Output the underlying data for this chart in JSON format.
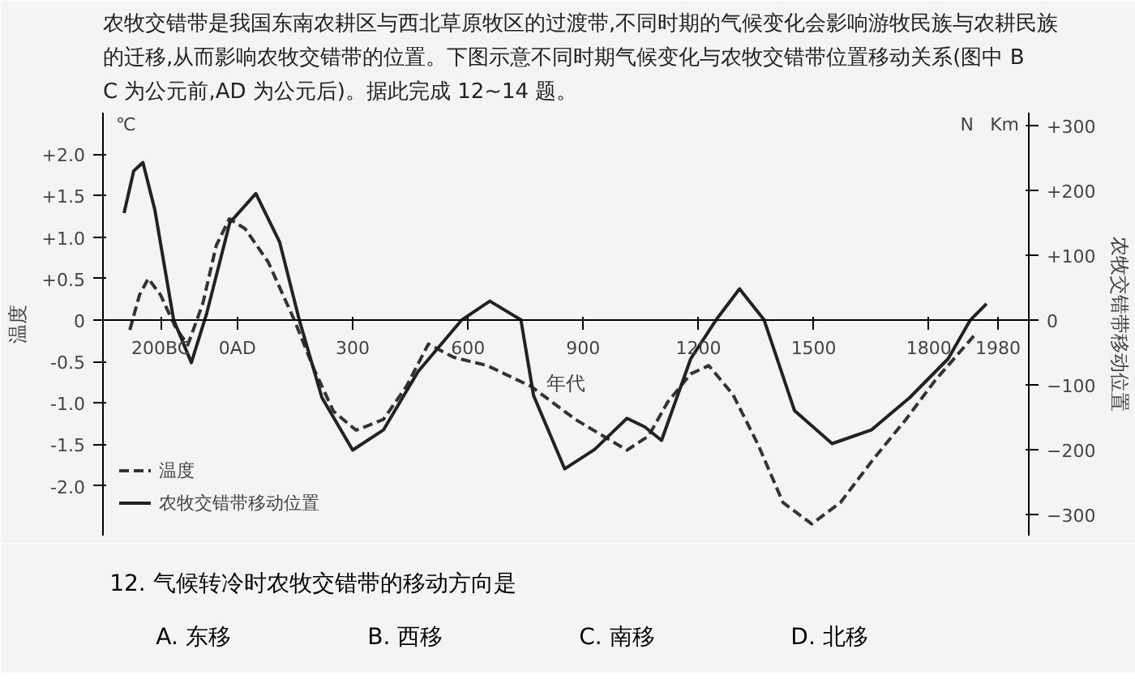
{
  "chart_data": {
    "type": "line",
    "title": "农牧交错带是我国东南农耕区与西北草原牧区的过渡带,不同时期的气候变化会影响游牧民族与农耕民族的迁移,从而影响农牧交错带的位置。下图示意不同时期气候变化与农牧交错带位置移动关系(图中 BC 为公元前,AD 为公元后)。据此完成 12~14 题。",
    "xlabel": "年代",
    "ylabel": "温度",
    "y2label": "农牧交错带移动位置",
    "annotations": [
      "℃",
      "N",
      "Km",
      "12. 气候转冷时农牧交错带的移动方向是",
      "A. 东移",
      "B. 西移",
      "C. 南移",
      "D. 北移"
    ],
    "xlim": [
      -350,
      2060
    ],
    "xticks": [
      {
        "value": -200,
        "label": "200BC"
      },
      {
        "value": 0,
        "label": "0AD"
      },
      300,
      600,
      900,
      1200,
      1500,
      1800,
      1980
    ],
    "ylim": [
      -2.6,
      2.5
    ],
    "yticks": [
      {
        "value": 2.0,
        "label": "+2.0"
      },
      {
        "value": 1.5,
        "label": "+1.5"
      },
      {
        "value": 1.0,
        "label": "+1.0"
      },
      {
        "value": 0.5,
        "label": "+0.5"
      },
      0,
      {
        "value": -0.5,
        "label": "-0.5"
      },
      {
        "value": -1.0,
        "label": "-1.0"
      },
      {
        "value": -1.5,
        "label": "-1.5"
      },
      {
        "value": -2.0,
        "label": "-2.0"
      }
    ],
    "y2lim": [
      -333,
      320
    ],
    "y2ticks": [
      {
        "value": 300,
        "label": "+300"
      },
      {
        "value": 200,
        "label": "+200"
      },
      {
        "value": 100,
        "label": "+100"
      },
      0,
      -100,
      -200,
      -300
    ],
    "grid": false,
    "legend": "bottom left",
    "series": [
      {
        "name": "温度",
        "color": "#333333",
        "line_style": "dashed",
        "x": [
          -280,
          -255,
          -232,
          -200,
          -160,
          -129,
          -90,
          -55,
          -21,
          20,
          80,
          148,
          200,
          250,
          309,
          380,
          440,
          497,
          563,
          650,
          764,
          880,
          1014,
          1070,
          1120,
          1180,
          1227,
          1290,
          1355,
          1420,
          1495,
          1570,
          1655,
          1740,
          1816,
          1923
        ],
        "values": [
          -0.12,
          0.3,
          0.5,
          0.3,
          -0.1,
          -0.3,
          0.2,
          0.9,
          1.22,
          1.1,
          0.7,
          0,
          -0.6,
          -1.1,
          -1.33,
          -1.2,
          -0.8,
          -0.29,
          -0.45,
          -0.55,
          -0.8,
          -1.2,
          -1.57,
          -1.4,
          -0.99,
          -0.65,
          -0.55,
          -0.9,
          -1.5,
          -2.2,
          -2.46,
          -2.2,
          -1.68,
          -1.2,
          -0.73,
          -0.16
        ]
      },
      {
        "name": "农牧交错带移动位置",
        "color": "#222222",
        "line_style": "solid",
        "axis": "y2",
        "x": [
          -295,
          -270,
          -246,
          -215,
          -166,
          -120,
          -80,
          -20,
          48,
          110,
          161,
          220,
          300,
          380,
          470,
          584,
          657,
          738,
          771,
          852,
          930,
          1014,
          1060,
          1104,
          1180,
          1246,
          1307,
          1371,
          1450,
          1548,
          1650,
          1750,
          1850,
          1908,
          1950
        ],
        "values": [
          165,
          230,
          243,
          170,
          0,
          -66,
          10,
          150,
          195,
          120,
          0,
          -120,
          -201,
          -170,
          -80,
          0,
          29,
          0,
          -117,
          -230,
          -200,
          -152,
          -165,
          -186,
          -60,
          0,
          48,
          0,
          -140,
          -191,
          -170,
          -120,
          -60,
          0,
          25
        ]
      }
    ]
  }
}
